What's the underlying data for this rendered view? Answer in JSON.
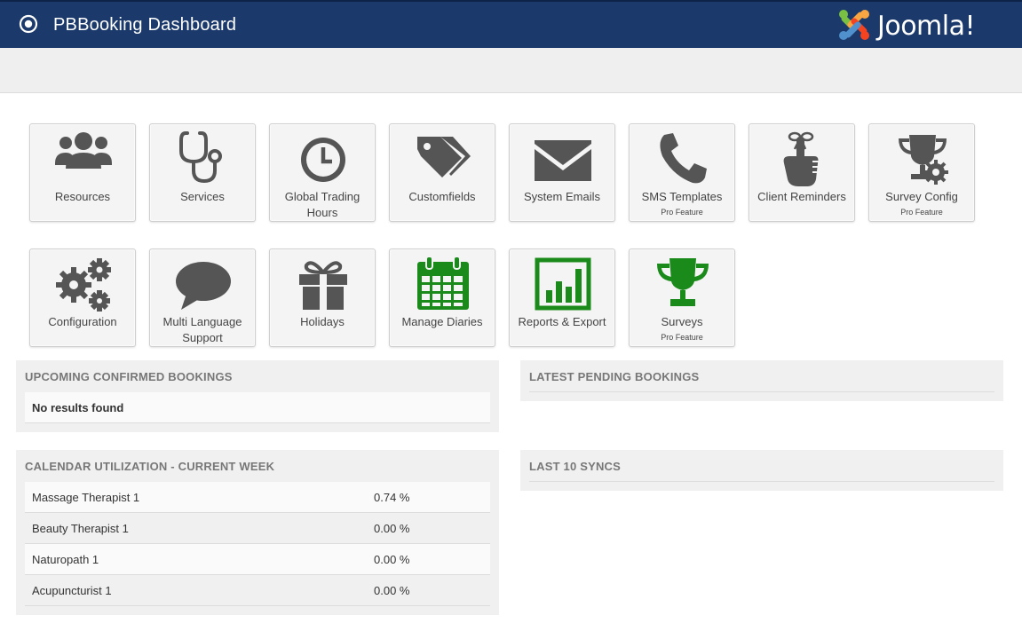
{
  "header": {
    "title": "PBBooking Dashboard",
    "brand": "Joomla!"
  },
  "tiles_row1": [
    {
      "label": "Resources",
      "icon": "users-icon"
    },
    {
      "label": "Services",
      "icon": "stethoscope-icon"
    },
    {
      "label": "Global Trading Hours",
      "icon": "clock-icon"
    },
    {
      "label": "Customfields",
      "icon": "tags-icon"
    },
    {
      "label": "System Emails",
      "icon": "envelope-icon"
    },
    {
      "label": "SMS Templates",
      "icon": "phone-icon",
      "pro": "Pro Feature"
    },
    {
      "label": "Client Reminders",
      "icon": "finger-ribbon-icon"
    },
    {
      "label": "Survey Config",
      "icon": "trophy-gear-icon",
      "pro": "Pro Feature"
    }
  ],
  "tiles_row2": [
    {
      "label": "Configuration",
      "icon": "gears-icon"
    },
    {
      "label": "Multi Language Support",
      "icon": "speech-bubble-icon"
    },
    {
      "label": "Holidays",
      "icon": "gift-icon"
    },
    {
      "label": "Manage Diaries",
      "icon": "calendar-icon"
    },
    {
      "label": "Reports & Export",
      "icon": "bar-chart-icon"
    },
    {
      "label": "Surveys",
      "icon": "trophy-icon",
      "pro": "Pro Feature"
    }
  ],
  "panels": {
    "upcoming": {
      "title": "UPCOMING CONFIRMED BOOKINGS",
      "empty": "No results found"
    },
    "pending": {
      "title": "LATEST PENDING BOOKINGS"
    },
    "utilization": {
      "title": "CALENDAR UTILIZATION - CURRENT WEEK",
      "rows": [
        {
          "name": "Massage Therapist 1",
          "value": "0.74 %"
        },
        {
          "name": "Beauty Therapist 1",
          "value": "0.00 %"
        },
        {
          "name": "Naturopath 1",
          "value": "0.00 %"
        },
        {
          "name": "Acupuncturist 1",
          "value": "0.00 %"
        }
      ]
    },
    "syncs": {
      "title": "LAST 10 SYNCS"
    }
  },
  "colors": {
    "header_bg": "#1b3a6b",
    "icon_gray": "#555555",
    "icon_green": "#1a8a1a"
  }
}
